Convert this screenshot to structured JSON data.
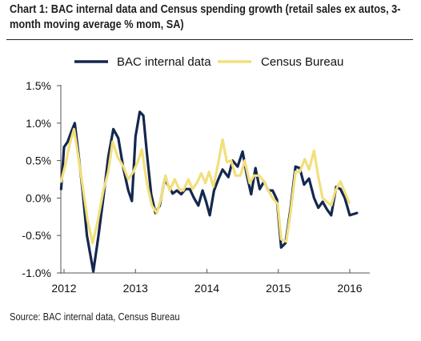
{
  "title_line1": "Chart 1: BAC internal data and Census spending growth (retail sales ex autos, 3-",
  "title_line2": "month moving average % mom, SA)",
  "source": "Source: BAC internal data, Census Bureau",
  "colors": {
    "bac": "#14274e",
    "census": "#f2df7c",
    "axis": "#555555"
  },
  "chart_data": {
    "type": "line",
    "y_ticks": [
      "1.5%",
      "1.0%",
      "0.5%",
      "0.0%",
      "-0.5%",
      "-1.0%"
    ],
    "y_tick_values": [
      1.5,
      1.0,
      0.5,
      0.0,
      -0.5,
      -1.0
    ],
    "ylim": [
      -1.0,
      1.5
    ],
    "x_ticks": [
      "2012",
      "2013",
      "2014",
      "2015",
      "2016"
    ],
    "x_tick_values": [
      2012,
      2013,
      2014,
      2015,
      2016
    ],
    "xlim": [
      2012,
      2016.25
    ],
    "grid": false,
    "legend_position": "top",
    "series": [
      {
        "name": "BAC internal data",
        "color": "#14274e",
        "points": [
          [
            2011.96,
            0.12
          ],
          [
            2012.0,
            0.68
          ],
          [
            2012.05,
            0.75
          ],
          [
            2012.1,
            0.88
          ],
          [
            2012.15,
            1.0
          ],
          [
            2012.2,
            0.6
          ],
          [
            2012.26,
            0.1
          ],
          [
            2012.32,
            -0.5
          ],
          [
            2012.41,
            -0.98
          ],
          [
            2012.48,
            -0.52
          ],
          [
            2012.55,
            0.0
          ],
          [
            2012.62,
            0.55
          ],
          [
            2012.69,
            0.92
          ],
          [
            2012.76,
            0.8
          ],
          [
            2012.83,
            0.4
          ],
          [
            2012.9,
            0.1
          ],
          [
            2012.95,
            -0.04
          ],
          [
            2012.97,
            0.3
          ],
          [
            2013.0,
            0.82
          ],
          [
            2013.06,
            1.15
          ],
          [
            2013.11,
            1.1
          ],
          [
            2013.16,
            0.6
          ],
          [
            2013.22,
            0.05
          ],
          [
            2013.28,
            -0.2
          ],
          [
            2013.34,
            -0.1
          ],
          [
            2013.41,
            0.25
          ],
          [
            2013.47,
            0.15
          ],
          [
            2013.52,
            0.06
          ],
          [
            2013.58,
            0.1
          ],
          [
            2013.64,
            0.05
          ],
          [
            2013.7,
            0.12
          ],
          [
            2013.76,
            0.12
          ],
          [
            2013.82,
            0.0
          ],
          [
            2013.88,
            -0.1
          ],
          [
            2013.94,
            0.1
          ],
          [
            2013.99,
            -0.05
          ],
          [
            2014.04,
            -0.23
          ],
          [
            2014.1,
            0.1
          ],
          [
            2014.16,
            0.25
          ],
          [
            2014.22,
            0.38
          ],
          [
            2014.3,
            0.28
          ],
          [
            2014.36,
            0.5
          ],
          [
            2014.43,
            0.42
          ],
          [
            2014.5,
            0.62
          ],
          [
            2014.56,
            0.3
          ],
          [
            2014.62,
            0.05
          ],
          [
            2014.68,
            0.4
          ],
          [
            2014.74,
            0.12
          ],
          [
            2014.8,
            0.22
          ],
          [
            2014.86,
            0.1
          ],
          [
            2014.92,
            0.1
          ],
          [
            2014.98,
            -0.02
          ],
          [
            2015.04,
            -0.66
          ],
          [
            2015.1,
            -0.6
          ],
          [
            2015.17,
            -0.15
          ],
          [
            2015.24,
            0.42
          ],
          [
            2015.3,
            0.4
          ],
          [
            2015.36,
            0.18
          ],
          [
            2015.43,
            0.26
          ],
          [
            2015.5,
            0.0
          ],
          [
            2015.56,
            -0.13
          ],
          [
            2015.62,
            -0.05
          ],
          [
            2015.68,
            -0.15
          ],
          [
            2015.74,
            -0.23
          ],
          [
            2015.81,
            0.15
          ],
          [
            2015.87,
            0.12
          ],
          [
            2015.93,
            0.0
          ],
          [
            2016.0,
            -0.23
          ],
          [
            2016.1,
            -0.2
          ]
        ]
      },
      {
        "name": "Census Bureau",
        "color": "#f2df7c",
        "points": [
          [
            2011.96,
            0.22
          ],
          [
            2012.02,
            0.45
          ],
          [
            2012.08,
            0.72
          ],
          [
            2012.14,
            0.92
          ],
          [
            2012.2,
            0.55
          ],
          [
            2012.27,
            0.1
          ],
          [
            2012.33,
            -0.3
          ],
          [
            2012.4,
            -0.6
          ],
          [
            2012.47,
            -0.32
          ],
          [
            2012.55,
            0.1
          ],
          [
            2012.62,
            0.35
          ],
          [
            2012.68,
            0.75
          ],
          [
            2012.75,
            0.55
          ],
          [
            2012.83,
            0.42
          ],
          [
            2012.9,
            0.25
          ],
          [
            2012.97,
            0.35
          ],
          [
            2013.03,
            0.48
          ],
          [
            2013.09,
            0.65
          ],
          [
            2013.16,
            0.2
          ],
          [
            2013.23,
            -0.1
          ],
          [
            2013.3,
            -0.2
          ],
          [
            2013.36,
            0.0
          ],
          [
            2013.42,
            0.3
          ],
          [
            2013.48,
            0.1
          ],
          [
            2013.55,
            0.25
          ],
          [
            2013.61,
            0.12
          ],
          [
            2013.67,
            0.1
          ],
          [
            2013.74,
            0.25
          ],
          [
            2013.8,
            0.12
          ],
          [
            2013.86,
            0.2
          ],
          [
            2013.92,
            0.33
          ],
          [
            2013.98,
            0.2
          ],
          [
            2014.03,
            0.35
          ],
          [
            2014.09,
            0.15
          ],
          [
            2014.15,
            0.42
          ],
          [
            2014.22,
            0.78
          ],
          [
            2014.28,
            0.48
          ],
          [
            2014.34,
            0.5
          ],
          [
            2014.4,
            0.3
          ],
          [
            2014.47,
            0.3
          ],
          [
            2014.53,
            0.5
          ],
          [
            2014.6,
            0.2
          ],
          [
            2014.66,
            0.3
          ],
          [
            2014.73,
            0.3
          ],
          [
            2014.8,
            0.22
          ],
          [
            2014.86,
            0.1
          ],
          [
            2014.92,
            0.0
          ],
          [
            2014.99,
            -0.08
          ],
          [
            2015.04,
            -0.55
          ],
          [
            2015.11,
            -0.58
          ],
          [
            2015.17,
            -0.2
          ],
          [
            2015.24,
            0.35
          ],
          [
            2015.3,
            0.35
          ],
          [
            2015.37,
            0.52
          ],
          [
            2015.43,
            0.38
          ],
          [
            2015.5,
            0.63
          ],
          [
            2015.56,
            0.28
          ],
          [
            2015.62,
            0.0
          ],
          [
            2015.68,
            -0.05
          ],
          [
            2015.74,
            -0.1
          ],
          [
            2015.8,
            0.1
          ],
          [
            2015.87,
            0.22
          ],
          [
            2015.93,
            0.08
          ],
          [
            2015.99,
            -0.06
          ]
        ]
      }
    ]
  }
}
